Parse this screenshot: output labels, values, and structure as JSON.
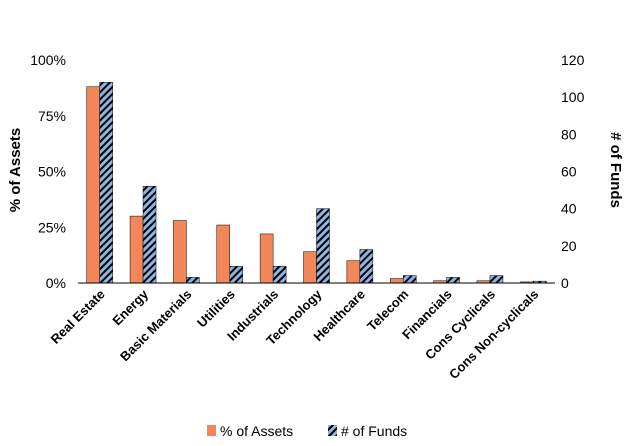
{
  "chart_data": {
    "type": "bar",
    "categories": [
      "Real Estate",
      "Energy",
      "Basic Materials",
      "Utilities",
      "Industrials",
      "Technology",
      "Healthcare",
      "Telecom",
      "Financials",
      "Cons Cyclicals",
      "Cons Non-cyclicals"
    ],
    "series": [
      {
        "name": "% of Assets",
        "axis": "left",
        "color": "#F4875A",
        "values": [
          88,
          30,
          28,
          26,
          22,
          14,
          10,
          2,
          1,
          1,
          0.5
        ]
      },
      {
        "name": "# of Funds",
        "axis": "right",
        "color": "#8EB4E3",
        "pattern": "diagonal-stripes-black",
        "values": [
          108,
          52,
          3,
          9,
          9,
          40,
          18,
          4,
          3,
          4,
          1
        ]
      }
    ],
    "ylabel_left": "% of Assets",
    "ylabel_right": "# of Funds",
    "ylim_left": [
      0,
      100
    ],
    "ylim_right": [
      0,
      120
    ],
    "yticks_left": [
      "0%",
      "25%",
      "50%",
      "75%",
      "100%"
    ],
    "yticks_right": [
      "0",
      "20",
      "40",
      "60",
      "80",
      "100",
      "120"
    ],
    "legend": "bottom",
    "grid": false
  }
}
